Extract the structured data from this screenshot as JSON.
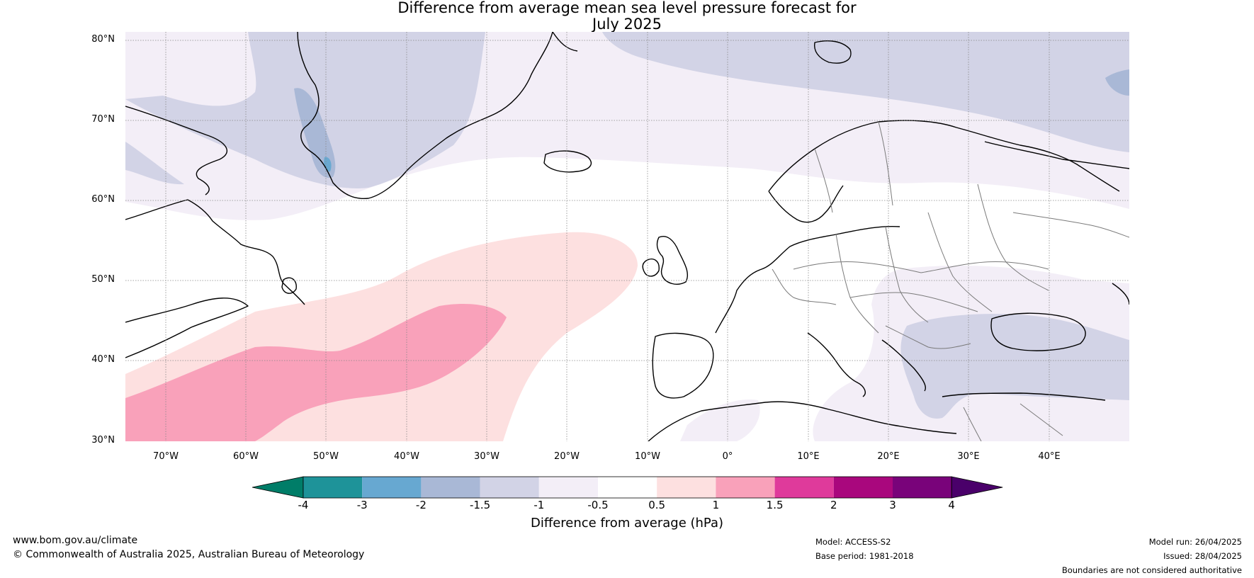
{
  "title": {
    "line1": "Difference from average mean sea level pressure forecast for",
    "line2": "July 2025"
  },
  "map": {
    "lat_labels": [
      "80°N",
      "70°N",
      "60°N",
      "50°N",
      "40°N",
      "30°N"
    ],
    "lon_labels": [
      "70°W",
      "60°W",
      "50°W",
      "40°W",
      "30°W",
      "20°W",
      "10°W",
      "0°",
      "10°E",
      "20°E",
      "30°E",
      "40°E"
    ],
    "lat_range": [
      30,
      80
    ],
    "lon_range": [
      -75,
      50
    ],
    "colors": {
      "neg_1_to_neg_0_5": "#f3eef7",
      "neg_1_5_to_neg_1": "#d2d3e6",
      "neg_2_to_neg_1_5": "#a9b8d6",
      "neg_3_to_neg_2": "#69a9d1",
      "pos_0_5_to_1": "#fde0e0",
      "pos_1_to_1_5": "#f9a1ba",
      "coast": "#000000",
      "borders": "#7a7a7a"
    }
  },
  "colorbar": {
    "ticks": [
      "-4",
      "-3",
      "-2",
      "-1.5",
      "-1",
      "-0.5",
      "0.5",
      "1",
      "1.5",
      "2",
      "3",
      "4"
    ],
    "colors": [
      "#007d68",
      "#1e9399",
      "#67a8d1",
      "#a9b8d6",
      "#d2d3e6",
      "#f3eef7",
      "#ffffff",
      "#fde0e0",
      "#f9a1ba",
      "#df3a9b",
      "#a9077d",
      "#79037a",
      "#4a006a"
    ],
    "label": "Difference from average (hPa)"
  },
  "footer": {
    "website": "www.bom.gov.au/climate",
    "copyright": "© Commonwealth of Australia 2025, Australian Bureau of Meteorology",
    "model": "Model: ACCESS-S2",
    "base_period": "Base period: 1981-2018",
    "model_run": "Model run: 26/04/2025",
    "issued": "Issued: 28/04/2025",
    "disclaimer": "Boundaries are not considered authoritative"
  }
}
